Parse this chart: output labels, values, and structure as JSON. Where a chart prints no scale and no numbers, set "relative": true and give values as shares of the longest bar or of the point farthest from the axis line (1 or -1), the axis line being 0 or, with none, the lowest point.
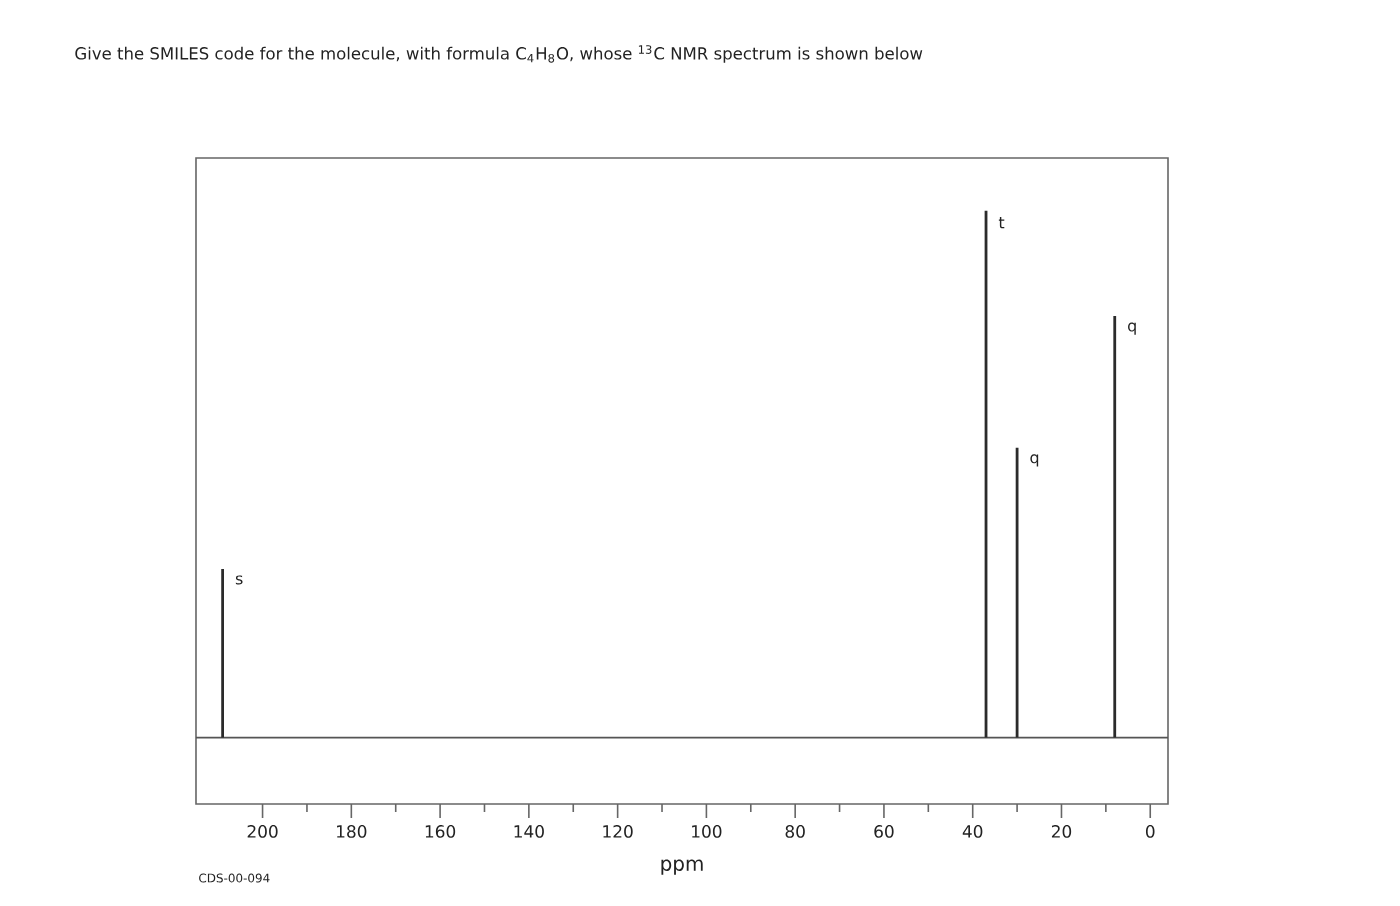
{
  "chart_data": {
    "type": "bar",
    "title": "Give the SMILES code for the molecule, with formula C$_{4}$H$_{8}$O, whose $^{13}$C NMR spectrum is shown below",
    "xlabel": "ppm",
    "x": [
      209,
      37,
      30,
      8
    ],
    "values": [
      0.32,
      1,
      0.55,
      0.8
    ],
    "color": "#2b2b2b",
    "relative": true,
    "xlim": [
      215,
      -4
    ],
    "xticks": [
      200,
      180,
      160,
      140,
      120,
      100,
      80,
      60,
      40,
      20,
      0
    ],
    "ref_lines": [
      {
        "axis": "y",
        "value": 0,
        "color": "#555555"
      }
    ],
    "annotations": [
      {
        "text": "s",
        "x": 209,
        "y": 0.32
      },
      {
        "text": "t",
        "x": 37,
        "y": 1
      },
      {
        "text": "q",
        "x": 30,
        "y": 0.55
      },
      {
        "text": "q",
        "x": 8,
        "y": 0.8
      },
      "CDS-00-094"
    ]
  }
}
